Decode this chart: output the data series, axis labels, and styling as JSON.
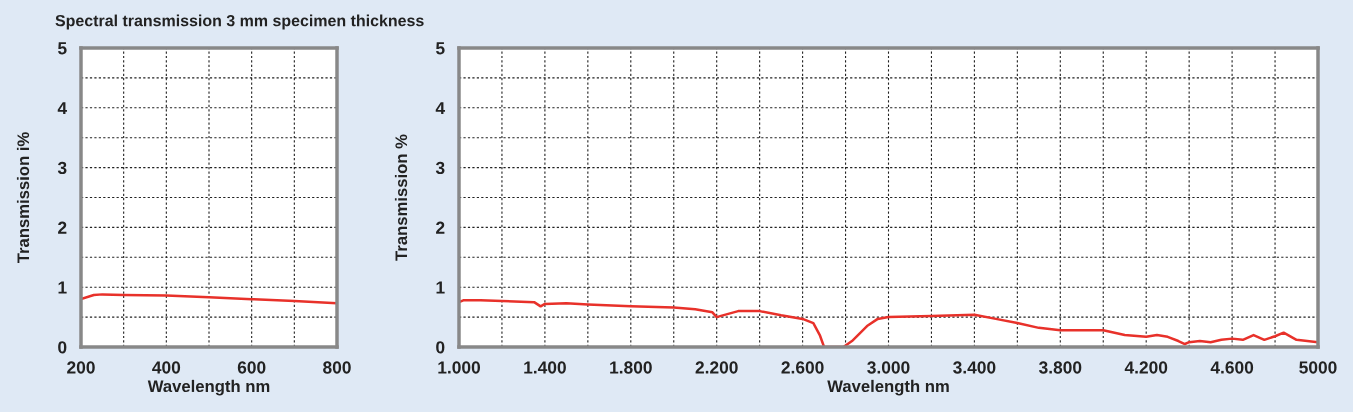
{
  "chart_data": [
    {
      "type": "line",
      "title": "Spectral transmission 3 mm specimen thickness",
      "xlabel": "Wavelength nm",
      "ylabel": "Transmission i%",
      "grid": true,
      "xlim": [
        200,
        800
      ],
      "xticks": [
        200,
        400,
        600,
        800
      ],
      "ylim": [
        0,
        5
      ],
      "yticks": [
        0,
        1,
        2,
        3,
        4,
        5
      ],
      "series": [
        {
          "color": "#e8312a",
          "x": [
            200,
            230,
            250,
            300,
            400,
            500,
            600,
            700,
            800
          ],
          "values": [
            0.8,
            0.87,
            0.88,
            0.87,
            0.86,
            0.83,
            0.8,
            0.77,
            0.73
          ]
        }
      ]
    },
    {
      "type": "line",
      "xlabel": "Wavelength nm",
      "ylabel": "Transmission %",
      "grid": true,
      "xlim": [
        1000,
        5000
      ],
      "xticks": [
        {
          "value": 1000,
          "label": "1.000"
        },
        {
          "value": 1400,
          "label": "1.400"
        },
        {
          "value": 1800,
          "label": "1.800"
        },
        {
          "value": 2200,
          "label": "2.200"
        },
        {
          "value": 2600,
          "label": "2.600"
        },
        {
          "value": 3000,
          "label": "3.000"
        },
        {
          "value": 3400,
          "label": "3.400"
        },
        {
          "value": 3800,
          "label": "3.800"
        },
        {
          "value": 4200,
          "label": "4.200"
        },
        {
          "value": 4600,
          "label": "4.600"
        },
        5000
      ],
      "ylim": [
        0,
        5
      ],
      "yticks": [
        0,
        1,
        2,
        3,
        4,
        5
      ],
      "series": [
        {
          "color": "#e8312a",
          "x": [
            1000,
            1020,
            1100,
            1200,
            1350,
            1380,
            1400,
            1500,
            1600,
            1800,
            2000,
            2100,
            2180,
            2200,
            2220,
            2300,
            2400,
            2500,
            2600,
            2650,
            2680,
            2700,
            2790,
            2830,
            2900,
            2950,
            3000,
            3200,
            3400,
            3500,
            3600,
            3700,
            3800,
            4000,
            4100,
            4200,
            4250,
            4300,
            4350,
            4380,
            4400,
            4450,
            4500,
            4550,
            4600,
            4650,
            4700,
            4750,
            4800,
            4840,
            4900,
            5000
          ],
          "values": [
            0.75,
            0.78,
            0.78,
            0.77,
            0.75,
            0.68,
            0.72,
            0.73,
            0.71,
            0.68,
            0.66,
            0.63,
            0.58,
            0.5,
            0.52,
            0.6,
            0.6,
            0.53,
            0.47,
            0.4,
            0.2,
            0.0,
            0.0,
            0.1,
            0.35,
            0.47,
            0.5,
            0.52,
            0.54,
            0.47,
            0.4,
            0.32,
            0.28,
            0.28,
            0.2,
            0.17,
            0.2,
            0.17,
            0.1,
            0.05,
            0.08,
            0.1,
            0.08,
            0.12,
            0.14,
            0.12,
            0.2,
            0.12,
            0.18,
            0.24,
            0.12,
            0.08
          ]
        }
      ]
    }
  ]
}
